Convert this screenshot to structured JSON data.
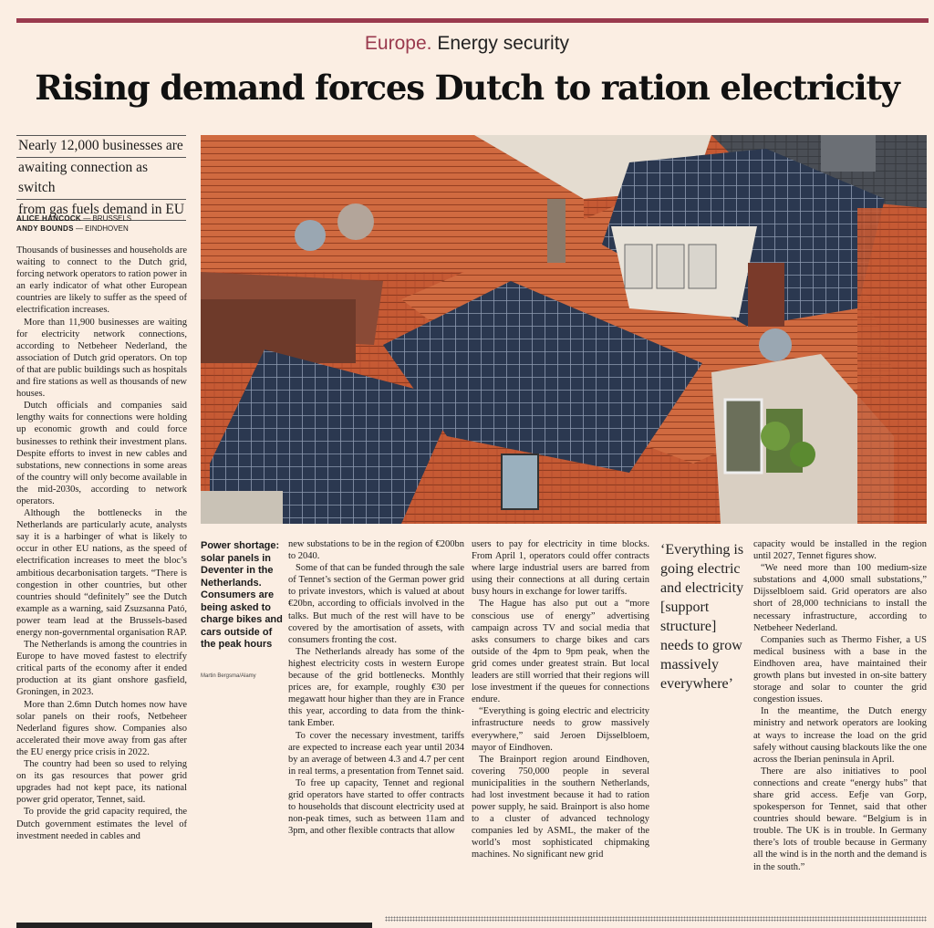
{
  "kicker": {
    "section": "Europe.",
    "topic": "Energy security",
    "accent": "#9a3a4e"
  },
  "headline": "Rising demand forces Dutch to ration electricity",
  "standfirst": [
    "Nearly 12,000 businesses are",
    "awaiting connection as switch",
    "from gas fuels demand in EU"
  ],
  "bylines": [
    {
      "name": "ALICE HANCOCK",
      "place": " — BRUSSELS"
    },
    {
      "name": "ANDY BOUNDS",
      "place": " — EINDHOVEN"
    }
  ],
  "photo": {
    "description_icon": "rooftops-solar-panels-photo",
    "caption": "Power shortage: solar panels in Deventer in the Netherlands. Consumers are being asked to charge bikes and cars outside of the peak hours",
    "credit": "Martin Bergsma/Alamy"
  },
  "pull_quote": "‘Everything is going electric and electricity [support structure] needs to grow massively everywhere’",
  "body": {
    "col1": [
      "Thousands of businesses and households are waiting to connect to the Dutch grid, forcing network operators to ration power in an early indicator of what other European countries are likely to suffer as the speed of electrification increases.",
      "More than 11,900 businesses are waiting for electricity network connections, according to Netbeheer Nederland, the association of Dutch grid operators. On top of that are public buildings such as hospitals and fire stations as well as thousands of new houses.",
      "Dutch officials and companies said lengthy waits for connections were holding up economic growth and could force businesses to rethink their investment plans. Despite efforts to invest in new cables and substations, new connections in some areas of the country will only become available in the mid-2030s, according to network operators.",
      "Although the bottlenecks in the Netherlands are particularly acute, analysts say it is a harbinger of what is likely to occur in other EU nations, as the speed of electrification increases to meet the bloc’s ambitious decarbonisation targets. “There is congestion in other countries, but other countries should “definitely” see the Dutch example as a warning, said Zsuzsanna Pató, power team lead at the Brussels-based energy non-governmental organisation RAP.",
      "The Netherlands is among the countries in Europe to have moved fastest to electrify critical parts of the economy after it ended production at its giant onshore gasfield, Groningen, in 2023.",
      "More than 2.6mn Dutch homes now have solar panels on their roofs, Netbeheer Nederland figures show. Companies also accelerated their move away from gas after the EU energy price crisis in 2022.",
      "The country had been so used to relying on its gas resources that power grid upgrades had not kept pace, its national power grid operator, Tennet, said.",
      "To provide the grid capacity required, the Dutch government estimates the level of investment needed in cables and"
    ],
    "col2": [
      "new substations to be in the region of €200bn to 2040.",
      "Some of that can be funded through the sale of Tennet’s section of the German power grid to private investors, which is valued at about €20bn, according to officials involved in the talks. But much of the rest will have to be covered by the amortisation of assets, with consumers fronting the cost.",
      "The Netherlands already has some of the highest electricity costs in western Europe because of the grid bottlenecks. Monthly prices are, for example, roughly €30 per megawatt hour higher than they are in France this year, according to data from the think-tank Ember.",
      "To cover the necessary investment, tariffs are expected to increase each year until 2034 by an average of between 4.3 and 4.7 per cent in real terms, a presentation from Tennet said.",
      "To free up capacity, Tennet and regional grid operators have started to offer contracts to households that discount electricity used at non-peak times, such as between 11am and 3pm, and other flexible contracts that allow"
    ],
    "col3": [
      "users to pay for electricity in time blocks. From April 1, operators could offer contracts where large industrial users are barred from using their connections at all during certain busy hours in exchange for lower tariffs.",
      "The Hague has also put out a “more conscious use of energy” advertising campaign across TV and social media that asks consumers to charge bikes and cars outside of the 4pm to 9pm peak, when the grid comes under greatest strain. But local leaders are still worried that their regions will lose investment if the queues for connections endure.",
      "“Everything is going electric and electricity infrastructure needs to grow massively everywhere,” said Jeroen Dijsselbloem, mayor of Eindhoven.",
      "The Brainport region around Eindhoven, covering 750,000 people in several municipalities in the southern Netherlands, had lost investment because it had to ration power supply, he said. Brainport is also home to a cluster of advanced technology companies led by ASML, the maker of the world’s most sophisticated chipmaking machines. No significant new grid"
    ],
    "col5": [
      "capacity would be installed in the region until 2027, Tennet figures show.",
      "“We need more than 100 medium-size substations and 4,000 small substations,” Dijsselbloem said. Grid operators are also short of 28,000 technicians to install the necessary infrastructure, according to Netbeheer Nederland.",
      "Companies such as Thermo Fisher, a US medical business with a base in the Eindhoven area, have maintained their growth plans but invested in on-site battery storage and solar to counter the grid congestion issues.",
      "In the meantime, the Dutch energy ministry and network operators are looking at ways to increase the load on the grid safely without causing blackouts like the one across the Iberian peninsula in April.",
      "There are also initiatives to pool connections and create “energy hubs” that share grid access. Eefje van Gorp, spokesperson for Tennet, said that other countries should beware. “Belgium is in trouble. The UK is in trouble. In Germany there’s lots of trouble because in Germany all the wind is in the north and the demand is in the south.”"
    ]
  }
}
